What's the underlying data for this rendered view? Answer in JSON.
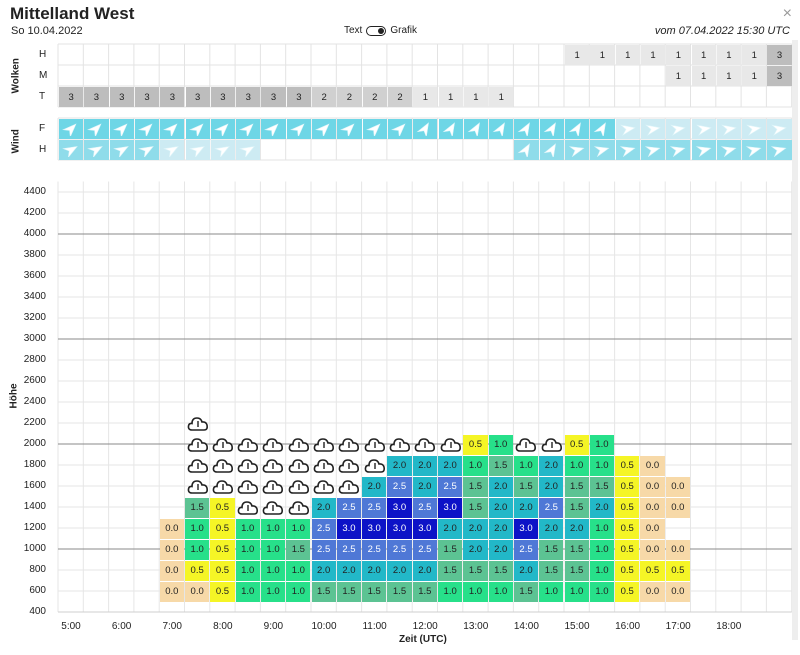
{
  "header": {
    "title": "Mittelland West",
    "date": "So 10.04.2022",
    "toggle_left": "Text",
    "toggle_right": "Grafik",
    "issued": "vom 07.04.2022 15:30 UTC",
    "close_symbol": "×"
  },
  "clouds": {
    "section_label": "Wolken",
    "rows": [
      "H",
      "M",
      "T"
    ],
    "H": [
      null,
      null,
      null,
      null,
      null,
      null,
      null,
      null,
      null,
      null,
      null,
      null,
      null,
      null,
      null,
      null,
      null,
      null,
      null,
      null,
      1,
      1,
      1,
      1,
      1,
      1,
      1,
      1,
      3
    ],
    "M": [
      null,
      null,
      null,
      null,
      null,
      null,
      null,
      null,
      null,
      null,
      null,
      null,
      null,
      null,
      null,
      null,
      null,
      null,
      null,
      null,
      null,
      null,
      null,
      null,
      1,
      1,
      1,
      1,
      3
    ],
    "T": [
      3,
      3,
      3,
      3,
      3,
      3,
      3,
      3,
      3,
      3,
      2,
      2,
      2,
      2,
      1,
      1,
      1,
      1,
      null,
      null,
      null,
      null,
      null,
      null,
      null,
      null,
      null,
      null,
      null
    ]
  },
  "wind": {
    "section_label": "Wind",
    "rows": [
      "F",
      "H"
    ],
    "F_count": 29,
    "H_slots": [
      0,
      1,
      2,
      3,
      4,
      5,
      6,
      7,
      18,
      19,
      20,
      21,
      22,
      23,
      24,
      25,
      26,
      27,
      28
    ]
  },
  "thermal": {
    "y_axis_label": "Höhe",
    "x_axis_label": "Zeit (UTC)",
    "y_ticks": [
      400,
      600,
      800,
      1000,
      1200,
      1400,
      1600,
      1800,
      2000,
      2200,
      2400,
      2600,
      2800,
      3000,
      3200,
      3400,
      3600,
      3800,
      4000,
      4200,
      4400
    ],
    "x_ticks": [
      "5:00",
      "6:00",
      "7:00",
      "8:00",
      "9:00",
      "10:00",
      "11:00",
      "12:00",
      "13:00",
      "14:00",
      "15:00",
      "16:00",
      "17:00",
      "18:00"
    ],
    "grid": [
      {
        "alt": 600,
        "values": [
          null,
          null,
          null,
          null,
          0.0,
          0.0,
          0.5,
          1.0,
          1.0,
          1.0,
          1.5,
          1.5,
          1.5,
          1.5,
          1.5,
          1.0,
          1.0,
          1.0,
          1.5,
          1.0,
          1.0,
          1.0,
          0.5,
          0.0,
          0.0,
          null,
          null,
          null,
          null
        ]
      },
      {
        "alt": 800,
        "values": [
          null,
          null,
          null,
          null,
          0.0,
          0.5,
          0.5,
          1.0,
          1.0,
          1.0,
          2.0,
          2.0,
          2.0,
          2.0,
          2.0,
          1.5,
          1.5,
          1.5,
          2.0,
          1.5,
          1.5,
          1.0,
          0.5,
          0.5,
          0.5,
          null,
          null,
          null,
          null
        ]
      },
      {
        "alt": 1000,
        "values": [
          null,
          null,
          null,
          null,
          0.0,
          1.0,
          0.5,
          1.0,
          1.0,
          1.5,
          2.5,
          2.5,
          2.5,
          2.5,
          2.5,
          1.5,
          2.0,
          2.0,
          2.5,
          1.5,
          1.5,
          1.0,
          0.5,
          0.0,
          0.0,
          null,
          null,
          null,
          null
        ]
      },
      {
        "alt": 1200,
        "values": [
          null,
          null,
          null,
          null,
          0.0,
          1.0,
          0.5,
          1.0,
          1.0,
          1.0,
          2.5,
          3.0,
          3.0,
          3.0,
          3.0,
          2.0,
          2.0,
          2.0,
          3.0,
          2.0,
          2.0,
          1.0,
          0.5,
          0.0,
          null,
          null,
          null,
          null,
          null
        ]
      },
      {
        "alt": 1400,
        "values": [
          null,
          null,
          null,
          null,
          null,
          1.5,
          0.5,
          "c",
          "c",
          "c",
          2.0,
          2.5,
          2.5,
          3.0,
          2.5,
          3.0,
          1.5,
          2.0,
          2.0,
          2.5,
          1.5,
          2.0,
          0.5,
          0.0,
          0.0,
          null,
          null,
          null,
          null
        ]
      },
      {
        "alt": 1600,
        "values": [
          null,
          null,
          null,
          null,
          null,
          "c",
          "c",
          "c",
          "c",
          "c",
          "c",
          "c",
          2.0,
          2.5,
          2.0,
          2.5,
          1.5,
          2.0,
          1.5,
          2.0,
          1.5,
          1.5,
          0.5,
          0.0,
          0.0,
          null,
          null,
          null,
          null
        ]
      },
      {
        "alt": 1800,
        "values": [
          null,
          null,
          null,
          null,
          null,
          "c",
          "c",
          "c",
          "c",
          "c",
          "c",
          "c",
          "c",
          2.0,
          2.0,
          2.0,
          1.0,
          1.5,
          1.0,
          2.0,
          1.0,
          1.0,
          0.5,
          0.0,
          null,
          null,
          null,
          null,
          null
        ]
      },
      {
        "alt": 2000,
        "values": [
          null,
          null,
          null,
          null,
          null,
          "c",
          "c",
          "c",
          "c",
          "c",
          "c",
          "c",
          "c",
          "c",
          "c",
          "c",
          0.5,
          1.0,
          "c",
          "c",
          0.5,
          1.0,
          null,
          null,
          null,
          null,
          null,
          null,
          null
        ]
      },
      {
        "alt": 2200,
        "values": [
          null,
          null,
          null,
          null,
          null,
          "c",
          null,
          null,
          null,
          null,
          null,
          null,
          null,
          null,
          null,
          null,
          null,
          null,
          null,
          null,
          null,
          null,
          null,
          null,
          null,
          null,
          null,
          null,
          null
        ]
      }
    ]
  },
  "colors": {
    "v0.0": "#f7d9a8",
    "v0.5": "#f5f526",
    "v1.0": "#27e08a",
    "v1.5": "#5cc393",
    "v2.0": "#22b8c8",
    "v2.5": "#4f78d6",
    "v3.0": "#0d13c7",
    "grey3": "#bdbdbd",
    "grey2": "#d0d0d0",
    "grey1": "#e8e8e8",
    "windF": "#6ed6e6",
    "windFlight": "#cdebf3",
    "windH": "#8fdcea"
  },
  "icons": {
    "cloud": "cloud-icon",
    "arrow": "wind-arrow-icon"
  }
}
